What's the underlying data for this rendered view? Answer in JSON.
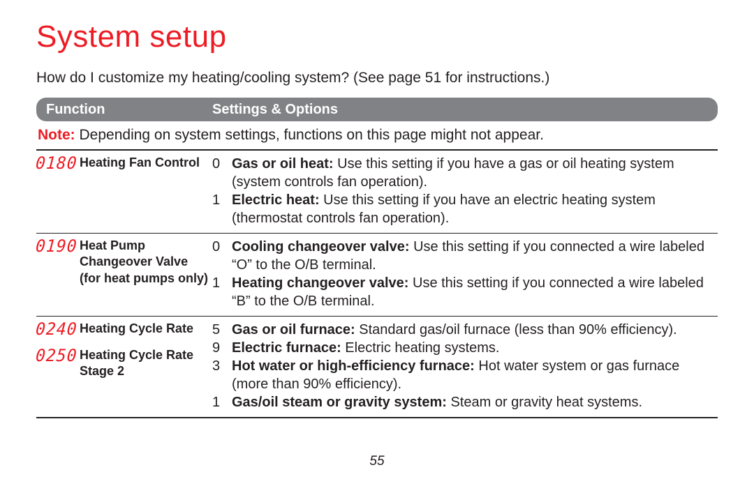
{
  "title": "System setup",
  "intro": "How do I customize my heating/cooling system? (See page 51 for instructions.)",
  "header": {
    "function": "Function",
    "settings": "Settings & Options"
  },
  "note": {
    "label": "Note:",
    "text": " Depending on system settings, functions on this page might not appear."
  },
  "rows": [
    {
      "funcs": [
        {
          "code": "0180",
          "name": "Heating Fan Control"
        }
      ],
      "opts": [
        {
          "n": "0",
          "term": "Gas or oil heat:",
          "rest": " Use this setting if you have a gas or oil heating system (system controls fan operation)."
        },
        {
          "n": "1",
          "term": "Electric heat:",
          "rest": " Use this setting if you have an electric heating system (thermostat controls fan operation)."
        }
      ]
    },
    {
      "funcs": [
        {
          "code": "0190",
          "name": "Heat Pump Changeover Valve (for heat pumps only)"
        }
      ],
      "opts": [
        {
          "n": "0",
          "term": "Cooling changeover valve:",
          "rest": " Use this setting if you connected a wire labeled “O” to the O/B terminal."
        },
        {
          "n": "1",
          "term": "Heating changeover valve:",
          "rest": " Use this setting if you connected a wire labeled “B” to the O/B terminal."
        }
      ]
    },
    {
      "funcs": [
        {
          "code": "0240",
          "name": "Heating Cycle Rate"
        },
        {
          "code": "0250",
          "name": "Heating Cycle Rate Stage 2"
        }
      ],
      "opts": [
        {
          "n": "5",
          "term": "Gas or oil furnace:",
          "rest": " Standard gas/oil furnace (less than 90% efficiency)."
        },
        {
          "n": "9",
          "term": "Electric furnace:",
          "rest": " Electric heating systems."
        },
        {
          "n": "3",
          "term": "Hot water or high-efficiency furnace:",
          "rest": " Hot water system or gas furnace (more than 90% efficiency)."
        },
        {
          "n": "1",
          "term": "Gas/oil steam or gravity system:",
          "rest": " Steam or gravity heat systems."
        }
      ]
    }
  ],
  "page_number": "55"
}
